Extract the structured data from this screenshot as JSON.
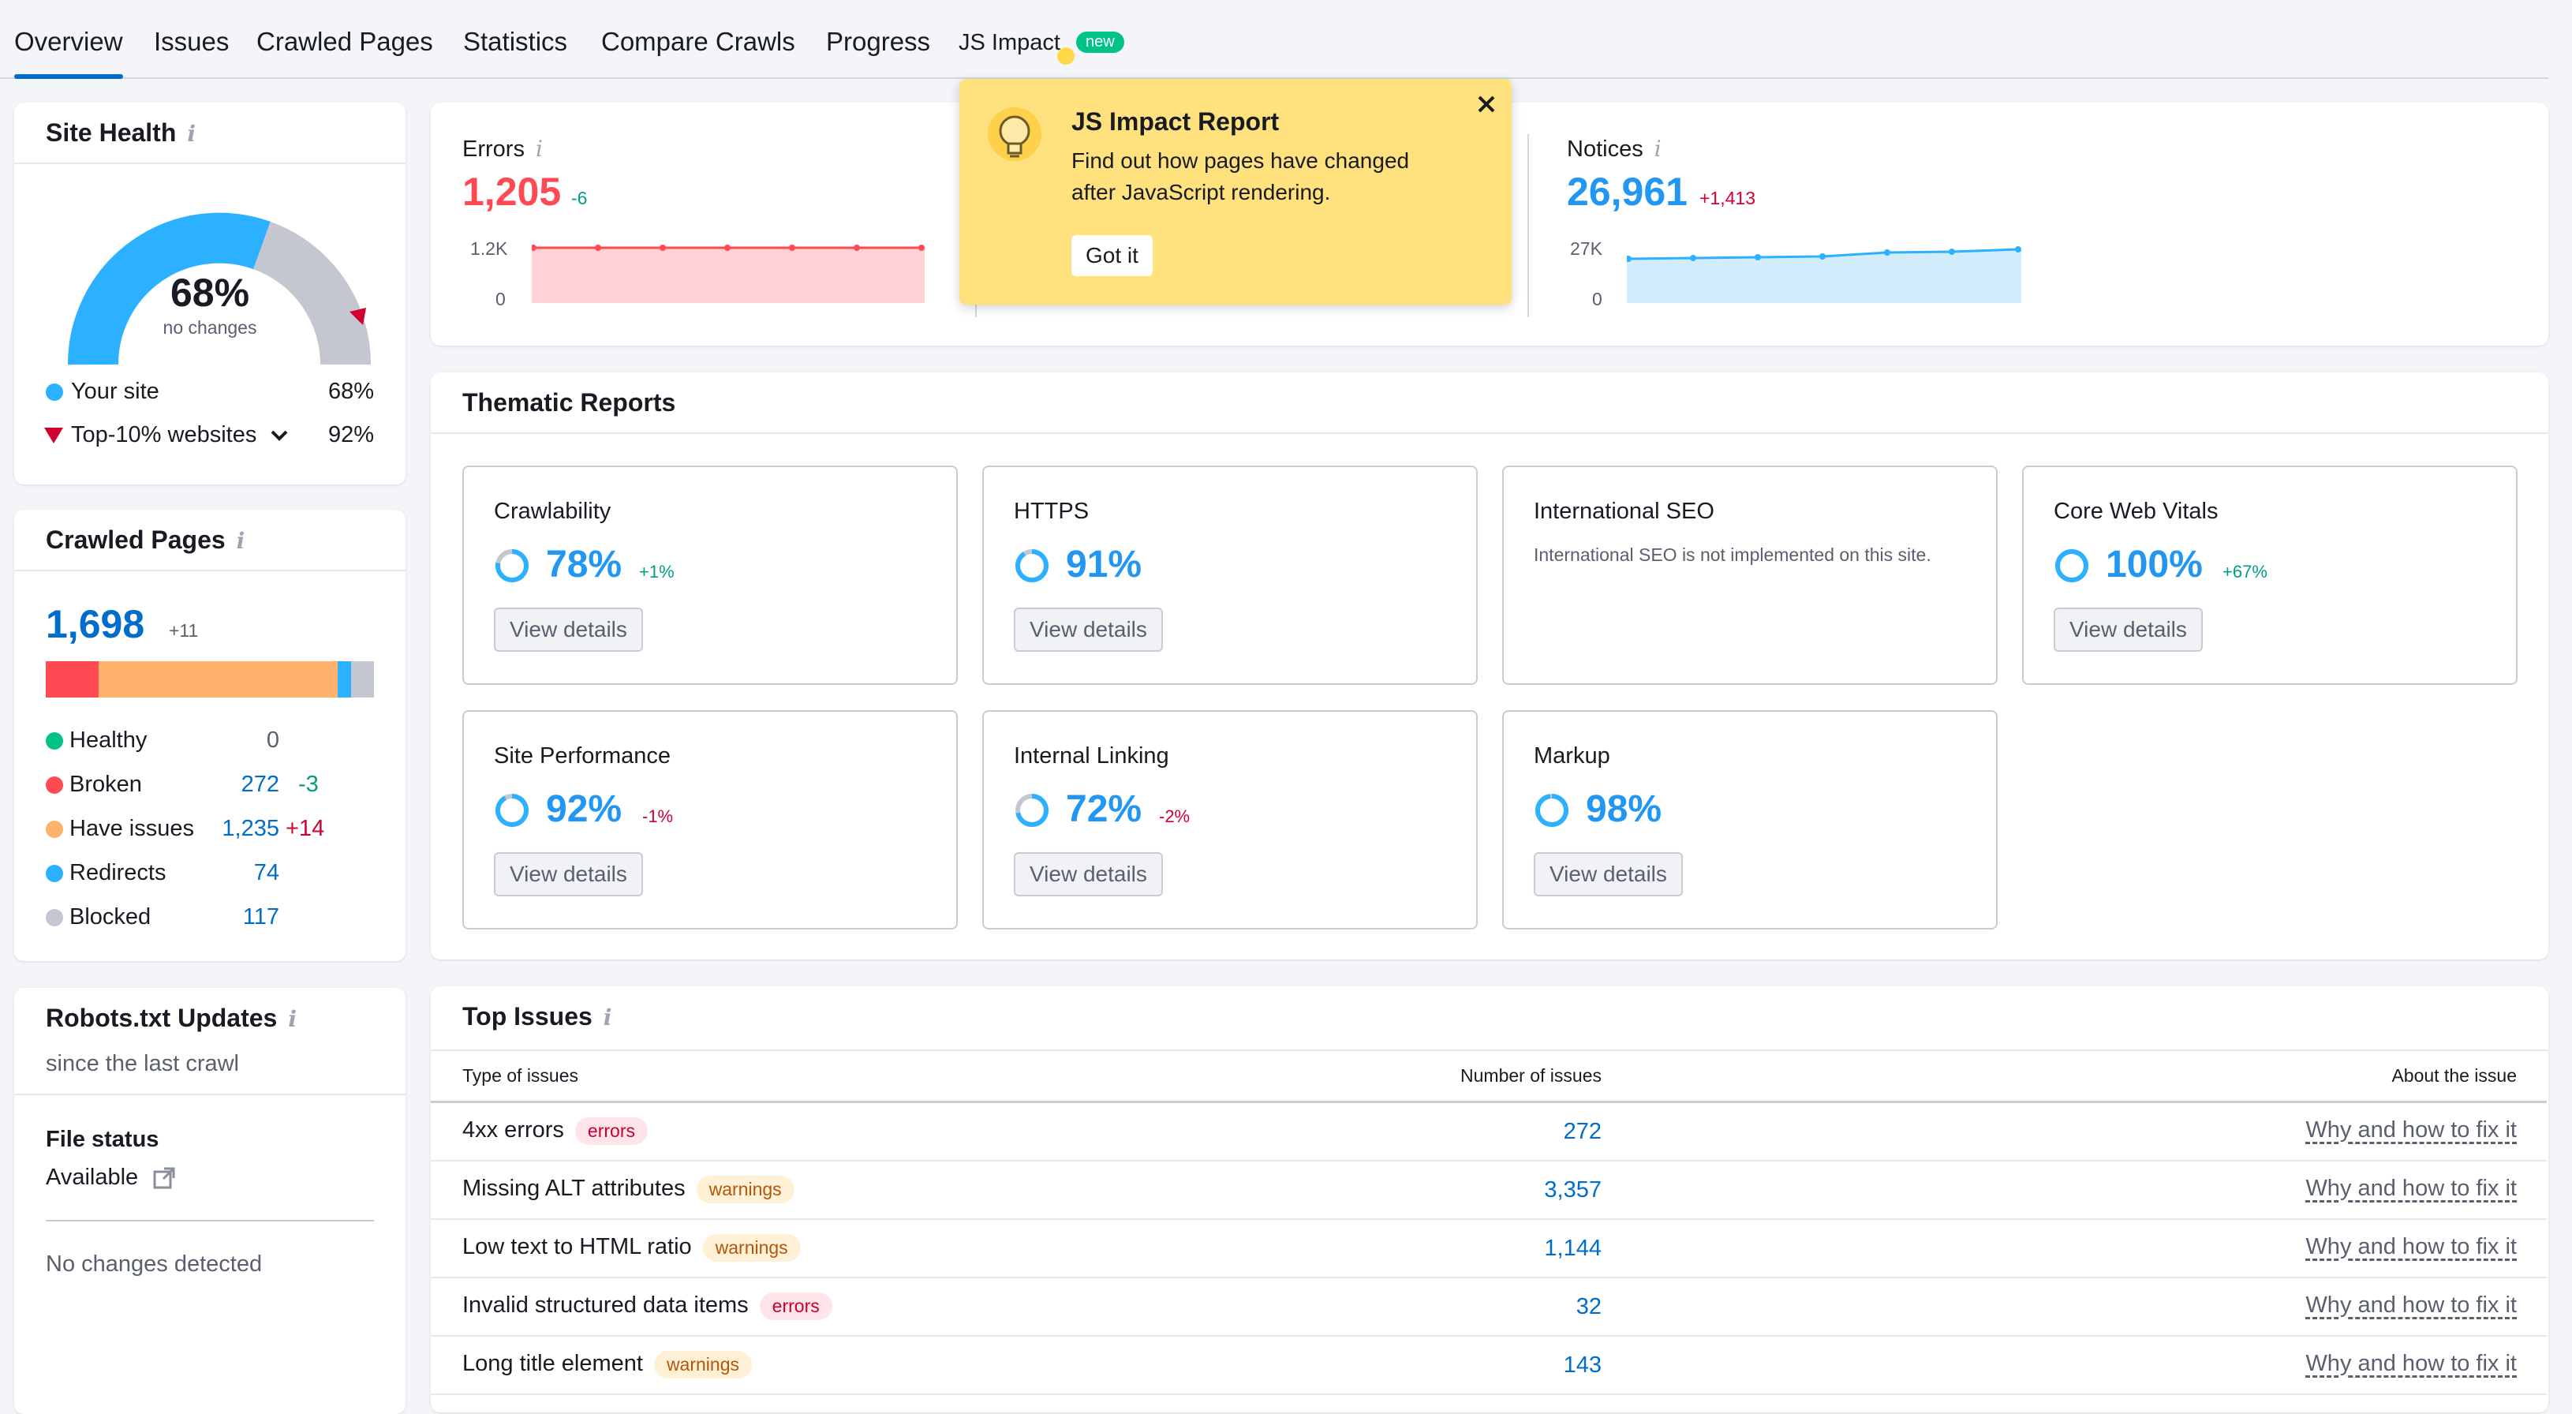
{
  "tabs": [
    {
      "label": "Overview",
      "active": true
    },
    {
      "label": "Issues"
    },
    {
      "label": "Crawled Pages"
    },
    {
      "label": "Statistics"
    },
    {
      "label": "Compare Crawls"
    },
    {
      "label": "Progress"
    },
    {
      "label": "JS Impact",
      "badge": "new"
    }
  ],
  "site_health": {
    "title": "Site Health",
    "percent": "68%",
    "note": "no changes",
    "your_site_label": "Your site",
    "your_site_value": "68%",
    "top_label": "Top-10% websites",
    "top_value": "92%"
  },
  "crawled_pages": {
    "title": "Crawled Pages",
    "total": "1,698",
    "delta": "+11",
    "bar_fractions": {
      "broken": 0.16,
      "have_issues": 0.73,
      "redirects": 0.04,
      "blocked": 0.07
    },
    "rows": [
      {
        "label": "Healthy",
        "value": "0",
        "delta": "",
        "color": "#00c385"
      },
      {
        "label": "Broken",
        "value": "272",
        "delta": "-3",
        "color": "#ff4953"
      },
      {
        "label": "Have issues",
        "value": "1,235",
        "delta": "+14",
        "color": "#ffb26b"
      },
      {
        "label": "Redirects",
        "value": "74",
        "delta": "",
        "color": "#2bb1ff"
      },
      {
        "label": "Blocked",
        "value": "117",
        "delta": "",
        "color": "#c4c7cf"
      }
    ]
  },
  "robots": {
    "title": "Robots.txt Updates",
    "subtitle": "since the last crawl",
    "file_status_label": "File status",
    "file_status_value": "Available",
    "no_changes": "No changes detected"
  },
  "errors": {
    "label": "Errors",
    "value": "1,205",
    "delta": "-6",
    "y_top": "1.2K",
    "y_zero": "0"
  },
  "notices": {
    "label": "Notices",
    "value": "26,961",
    "delta": "+1,413",
    "y_top": "27K",
    "y_zero": "0"
  },
  "popup": {
    "title": "JS Impact Report",
    "text_line1": "Find out how pages have changed",
    "text_line2": "after JavaScript rendering.",
    "button": "Got it"
  },
  "thematic": {
    "title": "Thematic Reports",
    "view_details": "View details",
    "cards": [
      {
        "name": "Crawlability",
        "pct": "78%",
        "delta": "+1%",
        "delta_color": "#009f81",
        "fill": 0.78
      },
      {
        "name": "HTTPS",
        "pct": "91%",
        "delta": "",
        "fill": 0.91
      },
      {
        "name": "International SEO",
        "desc": "International SEO is not implemented on this site."
      },
      {
        "name": "Core Web Vitals",
        "pct": "100%",
        "delta": "+67%",
        "delta_color": "#009f81",
        "fill": 1.0
      },
      {
        "name": "Site Performance",
        "pct": "92%",
        "delta": "-1%",
        "delta_color": "#d1002f",
        "fill": 0.92
      },
      {
        "name": "Internal Linking",
        "pct": "72%",
        "delta": "-2%",
        "delta_color": "#d1002f",
        "fill": 0.72
      },
      {
        "name": "Markup",
        "pct": "98%",
        "delta": "",
        "fill": 0.98
      }
    ]
  },
  "top_issues": {
    "title": "Top Issues",
    "col_type": "Type of issues",
    "col_count": "Number of issues",
    "col_about": "About the issue",
    "fix_label": "Why and how to fix it",
    "rows": [
      {
        "name": "4xx errors",
        "tag": "errors",
        "count": "272"
      },
      {
        "name": "Missing ALT attributes",
        "tag": "warnings",
        "count": "3,357"
      },
      {
        "name": "Low text to HTML ratio",
        "tag": "warnings",
        "count": "1,144"
      },
      {
        "name": "Invalid structured data items",
        "tag": "errors",
        "count": "32"
      },
      {
        "name": "Long title element",
        "tag": "warnings",
        "count": "143"
      }
    ]
  },
  "colors": {
    "accent": "#006dca",
    "your_site": "#2bb1ff",
    "error": "#ff4953",
    "popup": "#ffe17d"
  }
}
